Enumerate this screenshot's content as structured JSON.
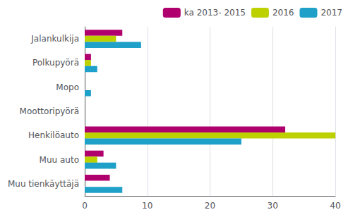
{
  "chart_data": {
    "type": "bar",
    "orientation": "horizontal",
    "categories": [
      "Jalankulkija",
      "Polkupyörä",
      "Mopo",
      "Moottoripyörä",
      "Henkilöauto",
      "Muu auto",
      "Muu tienkäyttäjä"
    ],
    "series": [
      {
        "name": "ka 2013- 2015",
        "color": "#b0006e",
        "values": [
          6,
          1,
          0,
          0,
          32,
          3,
          4
        ]
      },
      {
        "name": "2016",
        "color": "#bdd000",
        "values": [
          5,
          1,
          0,
          0,
          40,
          2,
          0
        ]
      },
      {
        "name": "2017",
        "color": "#1ea0c8",
        "values": [
          9,
          2,
          1,
          0,
          25,
          5,
          6
        ]
      }
    ],
    "xlim": [
      0,
      40
    ],
    "xticks": [
      0,
      10,
      20,
      30,
      40
    ],
    "grid": true,
    "legend": "upper right"
  }
}
